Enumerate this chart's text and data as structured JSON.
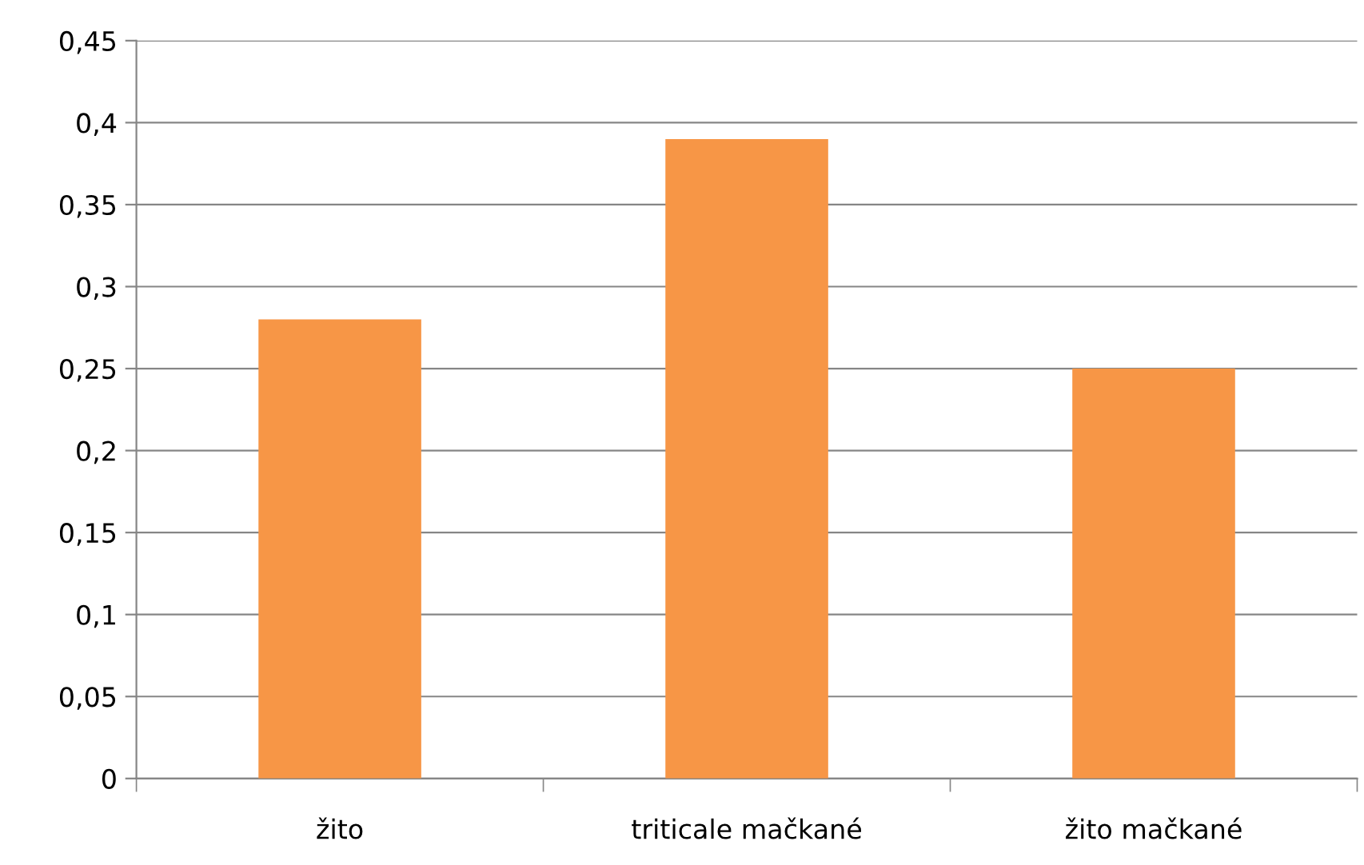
{
  "chart_data": {
    "type": "bar",
    "categories": [
      "žito",
      "triticale mačkané",
      "žito mačkané"
    ],
    "values": [
      0.28,
      0.39,
      0.25
    ],
    "color": "#f79646",
    "ylim": [
      0,
      0.45
    ],
    "yticks": [
      0,
      {
        "value": 0.05,
        "label": "0,05"
      },
      {
        "value": 0.1,
        "label": "0,1"
      },
      {
        "value": 0.15,
        "label": "0,15"
      },
      {
        "value": 0.2,
        "label": "0,2"
      },
      {
        "value": 0.25,
        "label": "0,25"
      },
      {
        "value": 0.3,
        "label": "0,3"
      },
      {
        "value": 0.35,
        "label": "0,35"
      },
      {
        "value": 0.4,
        "label": "0,4"
      },
      {
        "value": 0.45,
        "label": "0,45"
      }
    ],
    "grid": "y",
    "legend": false
  }
}
